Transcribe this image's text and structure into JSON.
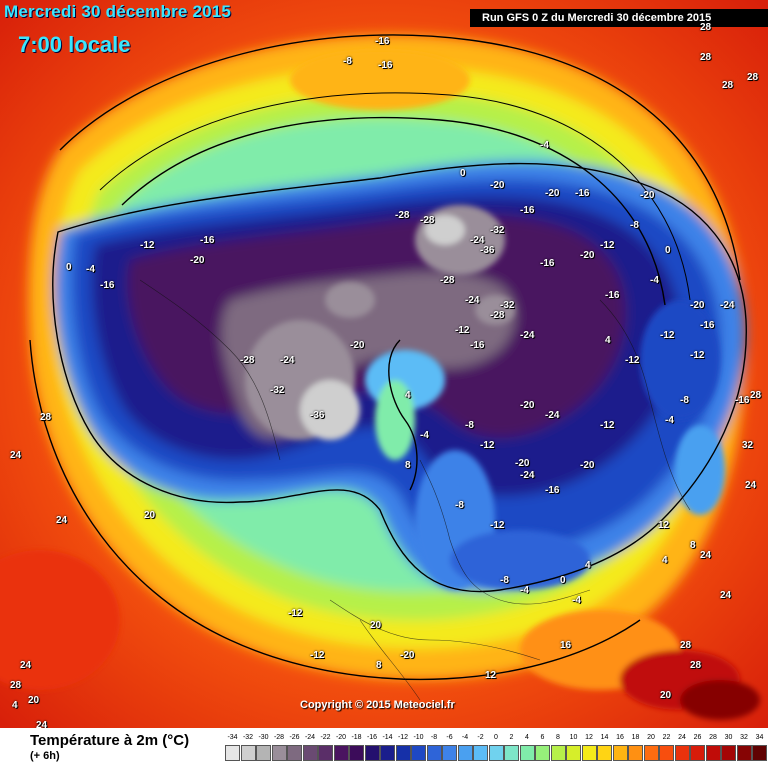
{
  "header": {
    "date_title": "Mercredi 30 décembre 2015",
    "time_title": "7:00 locale",
    "run_info": "Run GFS 0 Z du Mercredi 30 décembre 2015"
  },
  "copyright": "Copyright © 2015 Meteociel.fr",
  "legend": {
    "title": "Température à 2m (°C)",
    "subtitle": "(+ 6h)",
    "ticks": [
      "-34",
      "-32",
      "-30",
      "-28",
      "-26",
      "-24",
      "-22",
      "-20",
      "-18",
      "-16",
      "-14",
      "-12",
      "-10",
      "-8",
      "-6",
      "-4",
      "-2",
      "0",
      "2",
      "4",
      "6",
      "8",
      "10",
      "12",
      "14",
      "16",
      "18",
      "20",
      "22",
      "24",
      "26",
      "28",
      "30",
      "32",
      "34"
    ],
    "colors": [
      "#e6e6e6",
      "#cfcfcf",
      "#b4b4b4",
      "#9a8e9a",
      "#7e6a80",
      "#6a4a72",
      "#5a2e68",
      "#4a1460",
      "#3c0c5a",
      "#24106e",
      "#1a1e8c",
      "#1630a8",
      "#1e48c4",
      "#2e64d8",
      "#3e82e8",
      "#4aa0f0",
      "#5cbcf6",
      "#70d2ee",
      "#7ee6c8",
      "#80ecaa",
      "#96f07a",
      "#b6f04a",
      "#d6ee2a",
      "#f4ea1a",
      "#ffd414",
      "#ffb412",
      "#ff9012",
      "#ff6c10",
      "#f84e0e",
      "#ea320c",
      "#d81c0a",
      "#c00c08",
      "#a40606",
      "#860404",
      "#600202"
    ]
  },
  "map_labels": [
    {
      "t": "-16"
    },
    {
      "t": "-8"
    },
    {
      "t": "-16"
    },
    {
      "t": "28"
    },
    {
      "t": "28"
    },
    {
      "t": "28"
    },
    {
      "t": "28"
    },
    {
      "t": "-20"
    },
    {
      "t": "-16"
    },
    {
      "t": "-4"
    },
    {
      "t": "0"
    },
    {
      "t": "-20"
    },
    {
      "t": "-16"
    },
    {
      "t": "-16"
    },
    {
      "t": "-28"
    },
    {
      "t": "-28"
    },
    {
      "t": "-24"
    },
    {
      "t": "-32"
    },
    {
      "t": "-28"
    },
    {
      "t": "-24"
    },
    {
      "t": "-36"
    },
    {
      "t": "-32"
    },
    {
      "t": "-24"
    },
    {
      "t": "-28"
    },
    {
      "t": "-12"
    },
    {
      "t": "-16"
    },
    {
      "t": "-12"
    },
    {
      "t": "-20"
    },
    {
      "t": "-16"
    },
    {
      "t": "-20"
    },
    {
      "t": "-24"
    },
    {
      "t": "-12"
    },
    {
      "t": "-20"
    },
    {
      "t": "-4"
    },
    {
      "t": "-8"
    },
    {
      "t": "-12"
    },
    {
      "t": "-16"
    },
    {
      "t": "-20"
    },
    {
      "t": "-24"
    },
    {
      "t": "-16"
    },
    {
      "t": "-8"
    },
    {
      "t": "-12"
    },
    {
      "t": "-4"
    },
    {
      "t": "4"
    },
    {
      "t": "-8"
    },
    {
      "t": "8"
    },
    {
      "t": "-12"
    },
    {
      "t": "-8"
    },
    {
      "t": "-4"
    },
    {
      "t": "0"
    },
    {
      "t": "4"
    },
    {
      "t": "-4"
    },
    {
      "t": "12"
    },
    {
      "t": "8"
    },
    {
      "t": "4"
    },
    {
      "t": "16"
    },
    {
      "t": "12"
    },
    {
      "t": "24"
    },
    {
      "t": "24"
    },
    {
      "t": "28"
    },
    {
      "t": "24"
    },
    {
      "t": "20"
    },
    {
      "t": "28"
    },
    {
      "t": "-12"
    },
    {
      "t": "-12"
    },
    {
      "t": "20"
    },
    {
      "t": "-20"
    },
    {
      "t": "-12"
    },
    {
      "t": "-16"
    },
    {
      "t": "-4"
    },
    {
      "t": "-16"
    },
    {
      "t": "0"
    },
    {
      "t": "-28"
    },
    {
      "t": "-32"
    },
    {
      "t": "-24"
    },
    {
      "t": "-36"
    },
    {
      "t": "-20"
    },
    {
      "t": "24"
    },
    {
      "t": "28"
    },
    {
      "t": "24"
    },
    {
      "t": "32"
    },
    {
      "t": "28"
    },
    {
      "t": "-20"
    },
    {
      "t": "-12"
    },
    {
      "t": "-24"
    },
    {
      "t": "-20"
    },
    {
      "t": "-8"
    },
    {
      "t": "-4"
    },
    {
      "t": "0"
    },
    {
      "t": "4"
    },
    {
      "t": "-12"
    },
    {
      "t": "-16"
    },
    {
      "t": "-20"
    },
    {
      "t": "8"
    },
    {
      "t": "4"
    },
    {
      "t": "20"
    },
    {
      "t": "24"
    },
    {
      "t": "28"
    },
    {
      "t": "24"
    },
    {
      "t": "20"
    },
    {
      "t": "16"
    }
  ]
}
